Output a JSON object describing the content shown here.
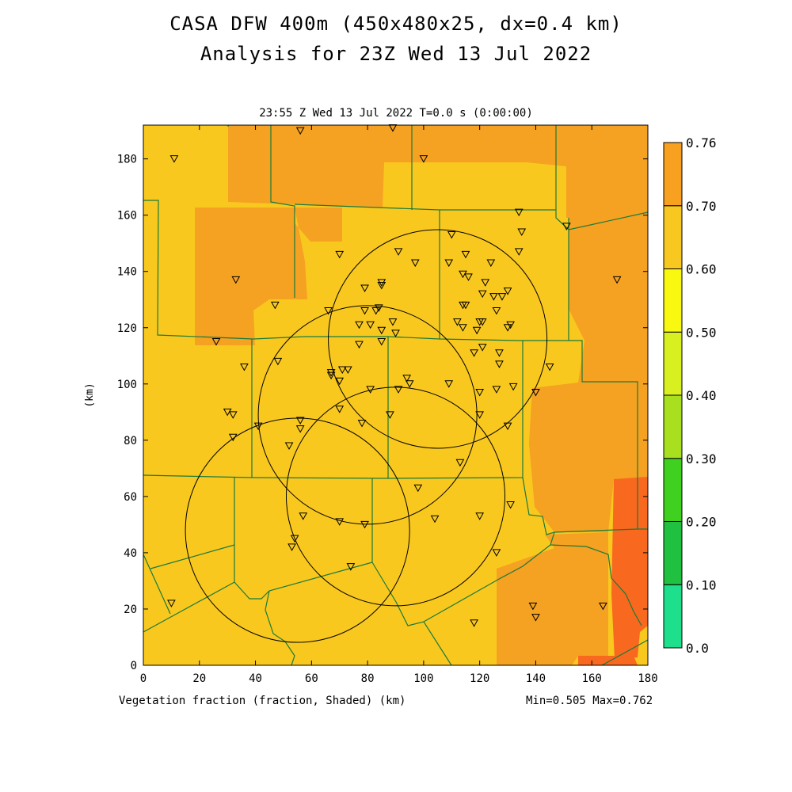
{
  "title_line1": "CASA DFW 400m (450x480x25, dx=0.4 km)",
  "title_line2": "Analysis for 23Z Wed 13 Jul 2022",
  "subtitle": "23:55 Z Wed 13 Jul 2022    T=0.0 s (0:00:00)",
  "variable_label": "Vegetation fraction (fraction, Shaded)  (km)",
  "min_max": "Min=0.505 Max=0.762",
  "y_axis_label": "(km)",
  "x_axis": {
    "min": 0,
    "max": 180,
    "ticks": [
      "0",
      "20",
      "40",
      "60",
      "80",
      "100",
      "120",
      "140",
      "160",
      "180"
    ]
  },
  "y_axis": {
    "min": 0,
    "max": 192,
    "ticks": [
      "0",
      "20",
      "40",
      "60",
      "80",
      "100",
      "120",
      "140",
      "160",
      "180"
    ]
  },
  "colorbar": {
    "labels": [
      "0.0",
      "0.10",
      "0.20",
      "0.30",
      "0.40",
      "0.50",
      "0.60",
      "0.70",
      "0.76"
    ],
    "colors": [
      "#1ee08c",
      "#20c040",
      "#40d020",
      "#a8e020",
      "#d8f020",
      "#f8f810",
      "#f8c820",
      "#f8a020",
      "#f86820"
    ]
  },
  "field_colors": {
    "v050_060": "#f9c81f",
    "v060_070": "#f5a122",
    "v070_076": "#f9681f",
    "county_line": "#1a7a3a",
    "radar_ring": "#000000"
  },
  "map": {
    "radar_rings": [
      {
        "center_km": [
          105,
          116
        ],
        "radius_km": 39
      },
      {
        "center_km": [
          80,
          89
        ],
        "radius_km": 39
      },
      {
        "center_km": [
          90,
          60
        ],
        "radius_km": 39
      },
      {
        "center_km": [
          55,
          48
        ],
        "radius_km": 40
      }
    ],
    "station_markers_km": [
      [
        56,
        190
      ],
      [
        89,
        191
      ],
      [
        11,
        180
      ],
      [
        100,
        180
      ],
      [
        134,
        161
      ],
      [
        135,
        154
      ],
      [
        151,
        156
      ],
      [
        110,
        153
      ],
      [
        115,
        146
      ],
      [
        109,
        143
      ],
      [
        124,
        143
      ],
      [
        91,
        147
      ],
      [
        134,
        147
      ],
      [
        70,
        146
      ],
      [
        97,
        143
      ],
      [
        114,
        139
      ],
      [
        116,
        138
      ],
      [
        33,
        137
      ],
      [
        85,
        136
      ],
      [
        85,
        135
      ],
      [
        79,
        134
      ],
      [
        122,
        136
      ],
      [
        128,
        131
      ],
      [
        121,
        132
      ],
      [
        125,
        131
      ],
      [
        130,
        133
      ],
      [
        169,
        137
      ],
      [
        47,
        128
      ],
      [
        115,
        128
      ],
      [
        114,
        128
      ],
      [
        126,
        126
      ],
      [
        66,
        126
      ],
      [
        84,
        127
      ],
      [
        79,
        126
      ],
      [
        83,
        126
      ],
      [
        121,
        122
      ],
      [
        112,
        122
      ],
      [
        114,
        120
      ],
      [
        120,
        122
      ],
      [
        119,
        119
      ],
      [
        131,
        121
      ],
      [
        130,
        120
      ],
      [
        77,
        121
      ],
      [
        81,
        121
      ],
      [
        89,
        122
      ],
      [
        90,
        118
      ],
      [
        85,
        119
      ],
      [
        85,
        115
      ],
      [
        26,
        115
      ],
      [
        77,
        114
      ],
      [
        118,
        111
      ],
      [
        121,
        113
      ],
      [
        127,
        111
      ],
      [
        127,
        107
      ],
      [
        36,
        106
      ],
      [
        48,
        108
      ],
      [
        71,
        105
      ],
      [
        73,
        105
      ],
      [
        67,
        104
      ],
      [
        67,
        103
      ],
      [
        70,
        101
      ],
      [
        145,
        106
      ],
      [
        94,
        102
      ],
      [
        95,
        100
      ],
      [
        109,
        100
      ],
      [
        91,
        98
      ],
      [
        81,
        98
      ],
      [
        120,
        97
      ],
      [
        126,
        98
      ],
      [
        132,
        99
      ],
      [
        140,
        97
      ],
      [
        70,
        91
      ],
      [
        30,
        90
      ],
      [
        32,
        89
      ],
      [
        88,
        89
      ],
      [
        120,
        89
      ],
      [
        78,
        86
      ],
      [
        130,
        85
      ],
      [
        41,
        85
      ],
      [
        56,
        87
      ],
      [
        56,
        84
      ],
      [
        32,
        81
      ],
      [
        52,
        78
      ],
      [
        113,
        72
      ],
      [
        98,
        63
      ],
      [
        131,
        57
      ],
      [
        57,
        53
      ],
      [
        120,
        53
      ],
      [
        104,
        52
      ],
      [
        70,
        51
      ],
      [
        79,
        50
      ],
      [
        54,
        45
      ],
      [
        53,
        42
      ],
      [
        126,
        40
      ],
      [
        74,
        35
      ],
      [
        10,
        22
      ],
      [
        139,
        21
      ],
      [
        164,
        21
      ],
      [
        140,
        17
      ],
      [
        118,
        15
      ]
    ]
  }
}
